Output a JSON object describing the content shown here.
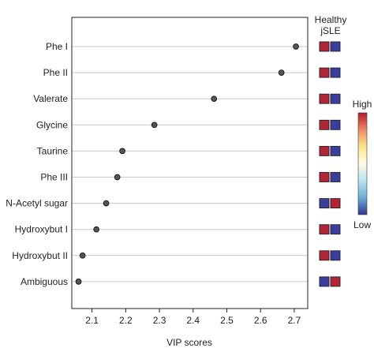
{
  "chart_data": {
    "type": "scatter",
    "subtype": "dot-plot",
    "title": "",
    "xlabel": "VIP scores",
    "ylabel": "",
    "xlim": [
      2.04,
      2.74
    ],
    "x_ticks": [
      "2.1",
      "2.2",
      "2.3",
      "2.4",
      "2.5",
      "2.6",
      "2.7"
    ],
    "grid": "horizontal",
    "categories": [
      "Phe I",
      "Phe II",
      "Valerate",
      "Glycine",
      "Taurine",
      "Phe III",
      "N-Acetyl sugar",
      "Hydroxybut I",
      "Hydroxybut II",
      "Ambiguous"
    ],
    "values": [
      2.705,
      2.662,
      2.462,
      2.285,
      2.19,
      2.175,
      2.142,
      2.113,
      2.072,
      2.06
    ],
    "groups": {
      "labels": [
        "Healthy",
        "jSLE"
      ],
      "cells": [
        [
          "high",
          "low"
        ],
        [
          "high",
          "low"
        ],
        [
          "high",
          "low"
        ],
        [
          "high",
          "low"
        ],
        [
          "high",
          "low"
        ],
        [
          "high",
          "low"
        ],
        [
          "low",
          "high"
        ],
        [
          "high",
          "low"
        ],
        [
          "high",
          "low"
        ],
        [
          "low",
          "high"
        ]
      ]
    },
    "colorbar": {
      "high_label": "High",
      "low_label": "Low",
      "colors": [
        "#b2182b",
        "#ef8a62",
        "#fde68a",
        "#fffbe6",
        "#b8e3ef",
        "#6baed6",
        "#313695"
      ]
    },
    "colors": {
      "high": "#b32435",
      "low": "#3a3f9e",
      "point": "#555555",
      "grid": "#c8c8c8"
    }
  }
}
